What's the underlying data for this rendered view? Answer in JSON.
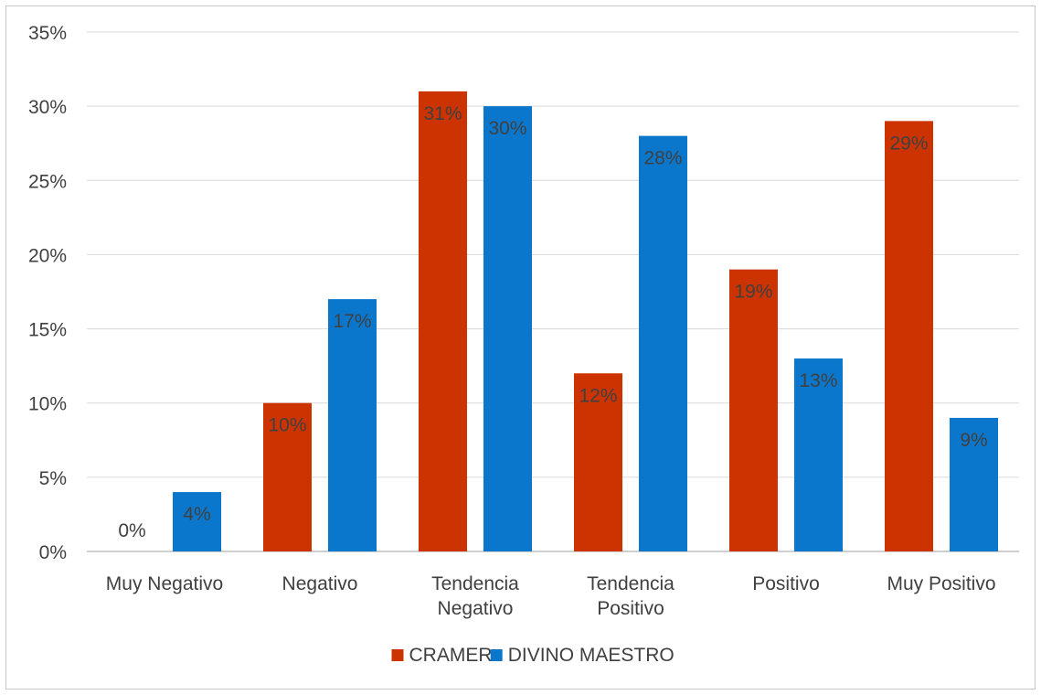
{
  "chart_data": {
    "type": "bar",
    "categories": [
      [
        "Muy Negativo"
      ],
      [
        "Negativo"
      ],
      [
        "Tendencia",
        "Negativo"
      ],
      [
        "Tendencia",
        "Positivo"
      ],
      [
        "Positivo"
      ],
      [
        "Muy Positivo"
      ]
    ],
    "series": [
      {
        "name": "CRAMER",
        "values": [
          0,
          10,
          31,
          12,
          19,
          29
        ],
        "labels": [
          "0%",
          "10%",
          "31%",
          "12%",
          "19%",
          "29%"
        ],
        "color": "#cc3300"
      },
      {
        "name": "DIVINO MAESTRO",
        "values": [
          4,
          17,
          30,
          28,
          13,
          9
        ],
        "labels": [
          "4%",
          "17%",
          "30%",
          "28%",
          "13%",
          "9%"
        ],
        "color": "#0a77cc"
      }
    ],
    "y_ticks": [
      "0%",
      "5%",
      "10%",
      "15%",
      "20%",
      "25%",
      "30%",
      "35%"
    ],
    "ylim": [
      0,
      35
    ],
    "y_unit": "%",
    "grid": true,
    "gridline_color": "#d9d9d9",
    "legend_position": "bottom"
  }
}
